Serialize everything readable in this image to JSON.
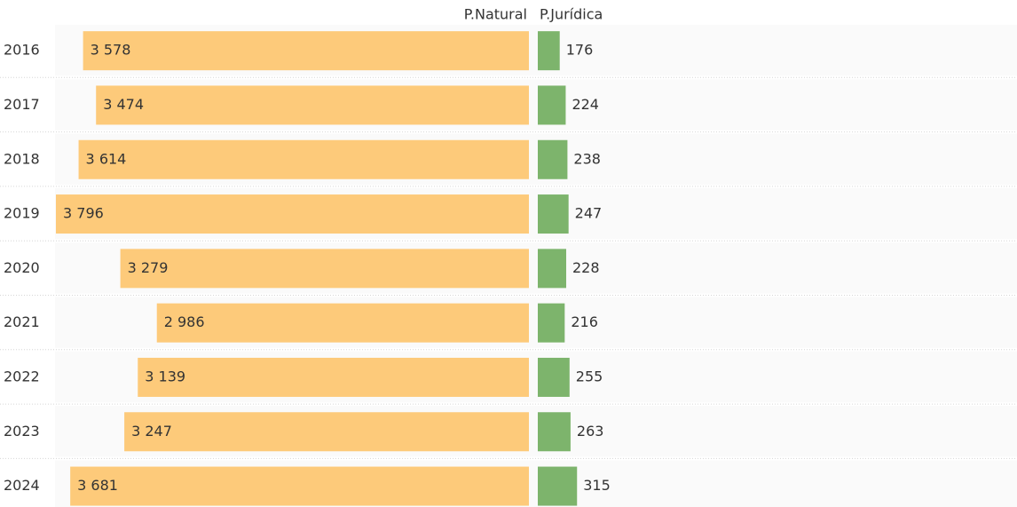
{
  "chart_data": {
    "type": "butterfly-bar",
    "categories": [
      "2016",
      "2017",
      "2018",
      "2019",
      "2020",
      "2021",
      "2022",
      "2023",
      "2024"
    ],
    "series": [
      {
        "name": "P.Natural",
        "color": "#fdca7a",
        "values": [
          3578,
          3474,
          3614,
          3796,
          3279,
          2986,
          3139,
          3247,
          3681
        ],
        "value_labels": [
          "3 578",
          "3 474",
          "3 614",
          "3 796",
          "3 279",
          "2 986",
          "3 139",
          "3 247",
          "3 681"
        ]
      },
      {
        "name": "P.Jurídica",
        "color": "#7db46c",
        "values": [
          176,
          224,
          238,
          247,
          228,
          216,
          255,
          263,
          315
        ]
      }
    ]
  }
}
